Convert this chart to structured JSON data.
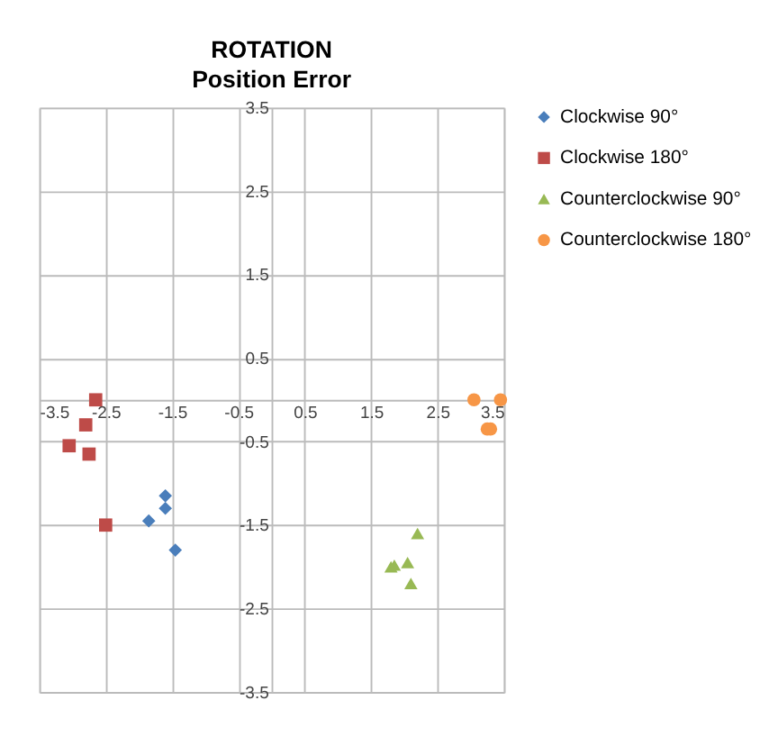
{
  "chart_data": {
    "type": "scatter",
    "title": "ROTATION",
    "subtitle": "Position Error",
    "xlim": [
      -3.5,
      3.5
    ],
    "ylim": [
      -3.5,
      3.5
    ],
    "xticks": [
      -3.5,
      -2.5,
      -1.5,
      -0.5,
      0.5,
      1.5,
      2.5,
      3.5
    ],
    "yticks": [
      -3.5,
      -2.5,
      -1.5,
      -0.5,
      0.5,
      1.5,
      2.5,
      3.5
    ],
    "grid": true,
    "legend": "right",
    "series": [
      {
        "name": "Clockwise 90°",
        "color": "#4a7ebb",
        "marker": "diamond",
        "x": [
          -1.6,
          -1.6,
          -1.85,
          -1.45
        ],
        "values": [
          -1.15,
          -1.3,
          -1.45,
          -1.8
        ]
      },
      {
        "name": "Clockwise 180°",
        "color": "#be4b48",
        "marker": "square",
        "x": [
          -2.65,
          -2.8,
          -3.05,
          -2.75,
          -2.5
        ],
        "values": [
          0,
          -0.3,
          -0.55,
          -0.65,
          -1.5
        ]
      },
      {
        "name": "Counterclockwise 90°",
        "color": "#98b954",
        "marker": "triangle",
        "x": [
          2.2,
          1.8,
          1.85,
          2.05,
          2.1
        ],
        "values": [
          -1.6,
          -2.0,
          -1.98,
          -1.95,
          -2.2
        ]
      },
      {
        "name": "Counterclockwise 180°",
        "color": "#f79646",
        "marker": "circle",
        "x": [
          3.05,
          3.45,
          3.25,
          3.3
        ],
        "values": [
          0,
          0,
          -0.35,
          -0.35
        ]
      }
    ]
  }
}
